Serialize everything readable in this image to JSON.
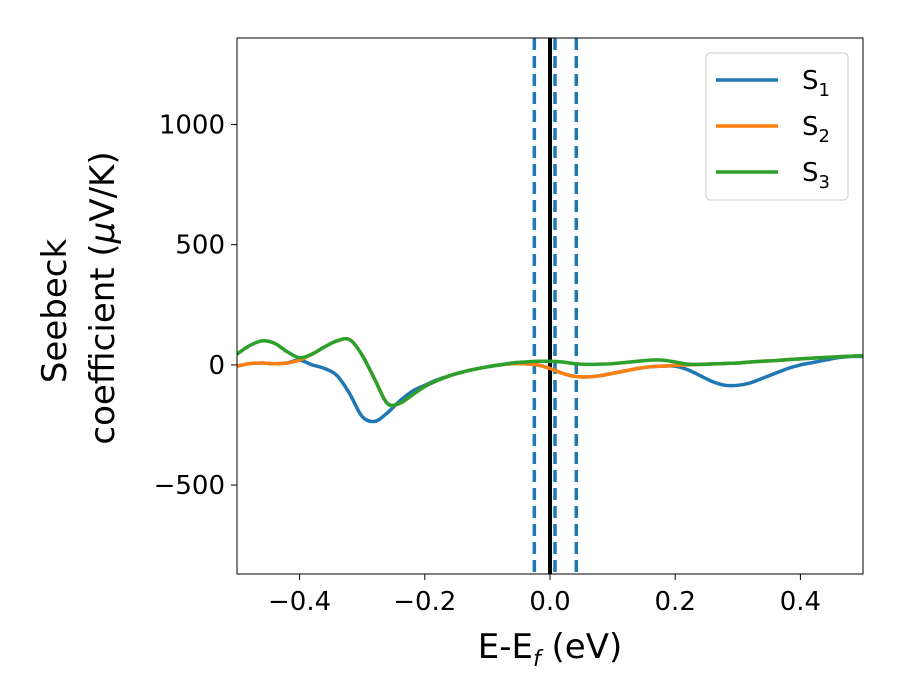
{
  "chart_data": {
    "type": "line",
    "title": "",
    "xlabel": {
      "main": "E-E",
      "sub": "f",
      "unit": " (eV)"
    },
    "ylabel": {
      "line1": "Seebeck",
      "line2": "coefficient  (",
      "mu": "μ",
      "line2_end": "V/K)"
    },
    "xlim": [
      -0.5,
      0.5
    ],
    "ylim": [
      -870,
      1360
    ],
    "xticks": [
      -0.4,
      -0.2,
      0.0,
      0.2,
      0.4
    ],
    "xtick_labels": [
      "−0.4",
      "−0.2",
      "0.0",
      "0.2",
      "0.4"
    ],
    "yticks": [
      -500,
      0,
      500,
      1000
    ],
    "ytick_labels": [
      "−500",
      "0",
      "500",
      "1000"
    ],
    "grid": false,
    "legend_position": "top-right",
    "vertical_lines": [
      {
        "x": -0.025,
        "style": "dashed",
        "color": "#1f77b4"
      },
      {
        "x": 0.008,
        "style": "dashed",
        "color": "#1f77b4"
      },
      {
        "x": 0.042,
        "style": "dashed",
        "color": "#1f77b4"
      },
      {
        "x": 0.0,
        "style": "solid",
        "color": "#000000"
      }
    ],
    "series": [
      {
        "name": "S",
        "sub": "1",
        "color": "#1f77b4",
        "x": [
          -0.5,
          -0.48,
          -0.46,
          -0.44,
          -0.42,
          -0.4,
          -0.38,
          -0.36,
          -0.34,
          -0.32,
          -0.3,
          -0.28,
          -0.26,
          -0.24,
          -0.22,
          -0.2,
          -0.18,
          -0.16,
          -0.14,
          -0.12,
          -0.1,
          -0.08,
          -0.06,
          -0.04,
          -0.02,
          0.0,
          0.02,
          0.04,
          0.06,
          0.08,
          0.1,
          0.12,
          0.14,
          0.16,
          0.18,
          0.2,
          0.22,
          0.24,
          0.26,
          0.28,
          0.3,
          0.32,
          0.34,
          0.36,
          0.38,
          0.4,
          0.42,
          0.44,
          0.46,
          0.48,
          0.5
        ],
        "y": [
          -5,
          5,
          8,
          5,
          8,
          20,
          0,
          -15,
          -45,
          -120,
          -215,
          -235,
          -200,
          -150,
          -110,
          -85,
          -62,
          -45,
          -30,
          -18,
          -8,
          0,
          5,
          5,
          0,
          -15,
          -35,
          -48,
          -50,
          -45,
          -35,
          -25,
          -15,
          -8,
          -5,
          -5,
          -20,
          -45,
          -70,
          -85,
          -85,
          -75,
          -55,
          -35,
          -15,
          0,
          10,
          20,
          30,
          35,
          35
        ]
      },
      {
        "name": "S",
        "sub": "2",
        "color": "#ff7f0e",
        "x": [
          -0.5,
          -0.48,
          -0.46,
          -0.44,
          -0.42,
          -0.4,
          -0.38,
          -0.36,
          -0.34,
          -0.32,
          -0.3,
          -0.28,
          -0.26,
          -0.24,
          -0.22,
          -0.2,
          -0.18,
          -0.16,
          -0.14,
          -0.12,
          -0.1,
          -0.08,
          -0.06,
          -0.04,
          -0.02,
          0.0,
          0.02,
          0.04,
          0.06,
          0.08,
          0.1,
          0.12,
          0.14,
          0.16,
          0.18,
          0.2,
          0.22,
          0.24,
          0.26,
          0.28,
          0.3,
          0.32,
          0.34,
          0.36,
          0.38,
          0.4,
          0.42,
          0.44,
          0.46,
          0.48,
          0.5
        ],
        "y": [
          -5,
          5,
          8,
          5,
          8,
          20,
          45,
          75,
          100,
          105,
          40,
          -60,
          -160,
          -160,
          -125,
          -90,
          -65,
          -45,
          -30,
          -18,
          -8,
          0,
          5,
          5,
          0,
          -15,
          -35,
          -48,
          -50,
          -45,
          -35,
          -25,
          -15,
          -8,
          -5,
          -2,
          0,
          2,
          4,
          6,
          8,
          12,
          15,
          18,
          22,
          25,
          28,
          31,
          34,
          36,
          38
        ]
      },
      {
        "name": "S",
        "sub": "3",
        "color": "#2ca02c",
        "x": [
          -0.5,
          -0.48,
          -0.46,
          -0.44,
          -0.42,
          -0.4,
          -0.38,
          -0.36,
          -0.34,
          -0.32,
          -0.3,
          -0.28,
          -0.26,
          -0.24,
          -0.22,
          -0.2,
          -0.18,
          -0.16,
          -0.14,
          -0.12,
          -0.1,
          -0.08,
          -0.06,
          -0.04,
          -0.02,
          0.0,
          0.02,
          0.04,
          0.06,
          0.08,
          0.1,
          0.12,
          0.14,
          0.16,
          0.18,
          0.2,
          0.22,
          0.24,
          0.26,
          0.28,
          0.3,
          0.32,
          0.34,
          0.36,
          0.38,
          0.4,
          0.42,
          0.44,
          0.46,
          0.48,
          0.5
        ],
        "y": [
          45,
          80,
          100,
          90,
          55,
          30,
          45,
          75,
          100,
          105,
          40,
          -60,
          -160,
          -160,
          -125,
          -90,
          -65,
          -45,
          -30,
          -18,
          -8,
          0,
          8,
          12,
          15,
          15,
          12,
          5,
          2,
          3,
          5,
          10,
          15,
          20,
          20,
          12,
          3,
          2,
          4,
          6,
          8,
          12,
          15,
          18,
          22,
          25,
          28,
          31,
          34,
          36,
          38
        ]
      }
    ]
  }
}
